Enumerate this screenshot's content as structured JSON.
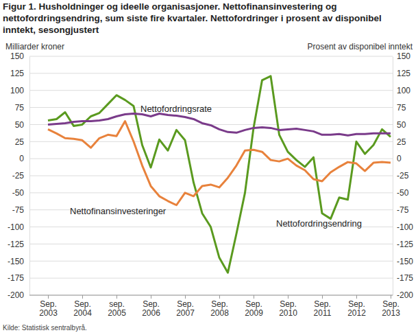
{
  "chart_data": {
    "type": "line",
    "title": "Figur 1. Husholdninger og ideelle organisasjoner. Nettofinansinvestering og nettofordringsendring, sum siste fire kvartaler. Nettofordringer i prosent av disponibel inntekt, sesongjustert",
    "y_label": "Milliarder kroner",
    "y2_label": "Prosent av disponibel inntekt",
    "source": "Kilde: Statistisk sentralbyrå.",
    "categories": [
      "Sep. 2003",
      null,
      null,
      null,
      "Sep. 2004",
      null,
      null,
      null,
      "sep. 2005",
      null,
      null,
      null,
      "Sep. 2006",
      null,
      null,
      null,
      "Sep. 2007",
      null,
      null,
      null,
      "Sep. 2008",
      null,
      null,
      null,
      "Sep. 2009",
      null,
      null,
      null,
      "Sep. 2010",
      null,
      null,
      null,
      "Sep. 2011",
      null,
      null,
      null,
      "Sep. 2012",
      null,
      null,
      null,
      "Sep. 2013"
    ],
    "series": [
      {
        "name": "Nettofordringsendring",
        "color": "#5a9a1f",
        "label": "Nettofordringsendring",
        "values": [
          56,
          58,
          68,
          48,
          50,
          62,
          67,
          80,
          93,
          86,
          77,
          20,
          -13,
          28,
          12,
          42,
          27,
          -35,
          -80,
          -100,
          -145,
          -167,
          -110,
          -50,
          45,
          115,
          121,
          35,
          10,
          -2,
          -12,
          2,
          -80,
          -88,
          -57,
          -60,
          25,
          7,
          20,
          43,
          32
        ]
      },
      {
        "name": "Nettofinansinvesteringer",
        "color": "#e8823c",
        "label": "Nettofinansinvesteringer",
        "values": [
          43,
          37,
          30,
          29,
          27,
          16,
          30,
          35,
          33,
          55,
          25,
          -10,
          -40,
          -55,
          -62,
          -68,
          -50,
          -55,
          -40,
          -38,
          -42,
          -28,
          -10,
          12,
          13,
          10,
          -2,
          -4,
          0,
          -10,
          -17,
          -30,
          -33,
          -20,
          -12,
          -5,
          -7,
          -18,
          -6,
          -5,
          -6
        ]
      },
      {
        "name": "Nettofordringsrate",
        "color": "#7a3b8a",
        "axis": "y2",
        "label": "Nettofordringsrate",
        "values": [
          50,
          51,
          52,
          54,
          55,
          55,
          56,
          58,
          62,
          65,
          66,
          65,
          62,
          66,
          64,
          63,
          61,
          58,
          52,
          49,
          43,
          39,
          38,
          42,
          45,
          46,
          45,
          42,
          43,
          44,
          42,
          40,
          35,
          35,
          36,
          34,
          36,
          36,
          37,
          37,
          37
        ]
      }
    ],
    "ylim": [
      -200,
      150
    ],
    "yticks": [
      -200,
      -175,
      -150,
      -125,
      -100,
      -75,
      -50,
      -25,
      0,
      25,
      50,
      75,
      100,
      125,
      150
    ],
    "y2lim": [
      -200,
      150
    ],
    "y2ticks": [
      -200,
      -175,
      -150,
      -125,
      -100,
      -75,
      -50,
      -25,
      0,
      25,
      50,
      75,
      100,
      125,
      150
    ],
    "grid": true
  }
}
